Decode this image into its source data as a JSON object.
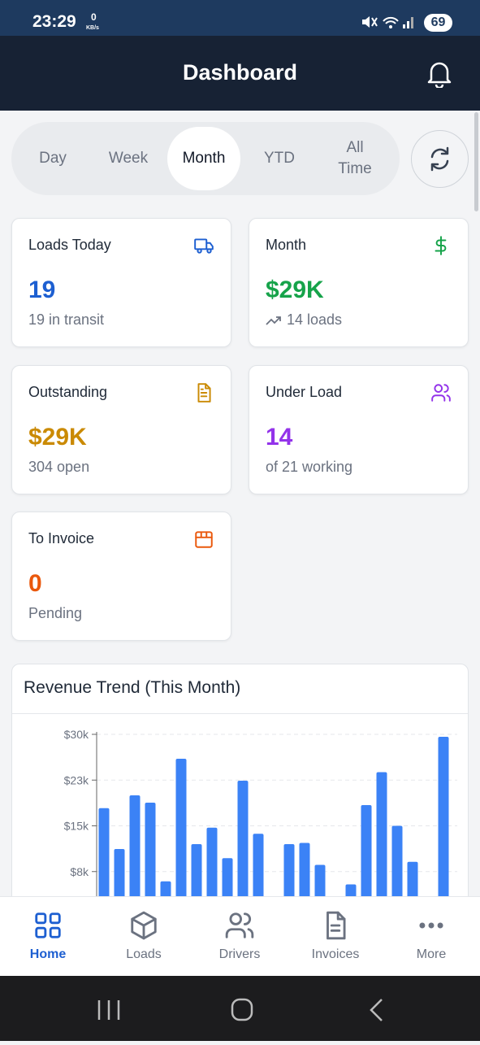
{
  "status_bar": {
    "time": "23:29",
    "speed": "0",
    "speed_unit": "KB/s",
    "battery": "69"
  },
  "header": {
    "title": "Dashboard"
  },
  "period_tabs": {
    "items": [
      "Day",
      "Week",
      "Month",
      "YTD",
      "All Time"
    ],
    "selected_index": 2
  },
  "cards": [
    {
      "title": "Loads Today",
      "value": "19",
      "subtitle": "19 in transit",
      "color": "#1d5fd1"
    },
    {
      "title": "Month",
      "value": "$29K",
      "subtitle": "14 loads",
      "color": "#16a34a"
    },
    {
      "title": "Outstanding",
      "value": "$29K",
      "subtitle": "304 open",
      "color": "#ca8a04"
    },
    {
      "title": "Under Load",
      "value": "14",
      "subtitle": "of 21 working",
      "color": "#9333ea"
    },
    {
      "title": "To Invoice",
      "value": "0",
      "subtitle": "Pending",
      "color": "#ea580c"
    }
  ],
  "chart_data": {
    "type": "bar",
    "title": "Revenue Trend (This Month)",
    "categories": [
      null,
      null,
      null,
      null,
      null,
      null,
      null,
      null,
      null,
      null,
      null,
      null,
      null,
      null,
      null,
      null,
      null,
      null,
      null,
      null,
      null,
      null,
      null
    ],
    "values": [
      17900,
      11200,
      20000,
      18800,
      5900,
      26000,
      12000,
      14700,
      9700,
      22400,
      13700,
      0,
      12000,
      12200,
      8600,
      0,
      5400,
      18400,
      23800,
      15000,
      9100,
      0,
      29600
    ],
    "color": "#3b82f6",
    "ylim": [
      0,
      30000
    ],
    "yticks": [
      {
        "value": 7500,
        "label": "$8k"
      },
      {
        "value": 15000,
        "label": "$15k"
      },
      {
        "value": 22500,
        "label": "$23k"
      },
      {
        "value": 30000,
        "label": "$30k"
      }
    ],
    "grid": true
  },
  "nav": {
    "items": [
      "Home",
      "Loads",
      "Drivers",
      "Invoices",
      "More"
    ],
    "active_index": 0
  }
}
